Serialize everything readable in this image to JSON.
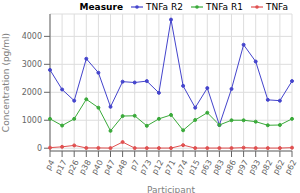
{
  "chart_data": {
    "type": "line",
    "xlabel": "Participant",
    "ylabel": "Concentration (pg/ml)",
    "legend_title": "Measure",
    "categories": [
      "p4",
      "p17",
      "p26",
      "p38",
      "p40",
      "p47",
      "p48",
      "p7",
      "p73",
      "p12",
      "p71",
      "p74",
      "p15",
      "p63",
      "p83",
      "p86",
      "p97",
      "p93",
      "p82",
      "p62",
      "p62"
    ],
    "series": [
      {
        "name": "TNFa R2",
        "color": "#4444cc",
        "marker": "circle",
        "values": [
          2800,
          2100,
          1700,
          3200,
          2700,
          1480,
          2380,
          2350,
          2400,
          1980,
          4600,
          2230,
          1450,
          2150,
          830,
          2120,
          3700,
          3100,
          1730,
          1700,
          2400
        ]
      },
      {
        "name": "TNFa R1",
        "color": "#3aaa3a",
        "marker": "circle",
        "values": [
          1050,
          810,
          1050,
          1750,
          1450,
          620,
          1150,
          1160,
          800,
          1050,
          1190,
          640,
          1010,
          1270,
          830,
          1000,
          1000,
          950,
          820,
          830,
          1050
        ]
      },
      {
        "name": "TNFa",
        "color": "#e05050",
        "marker": "circle",
        "values": [
          20,
          50,
          100,
          10,
          10,
          5,
          220,
          5,
          5,
          5,
          5,
          110,
          5,
          5,
          5,
          5,
          20,
          5,
          5,
          5,
          20
        ]
      }
    ],
    "ylim": [
      -100,
      4800
    ],
    "yticks": [
      0,
      1000,
      2000,
      3000,
      4000
    ],
    "grid": true,
    "legend": "upper right"
  }
}
